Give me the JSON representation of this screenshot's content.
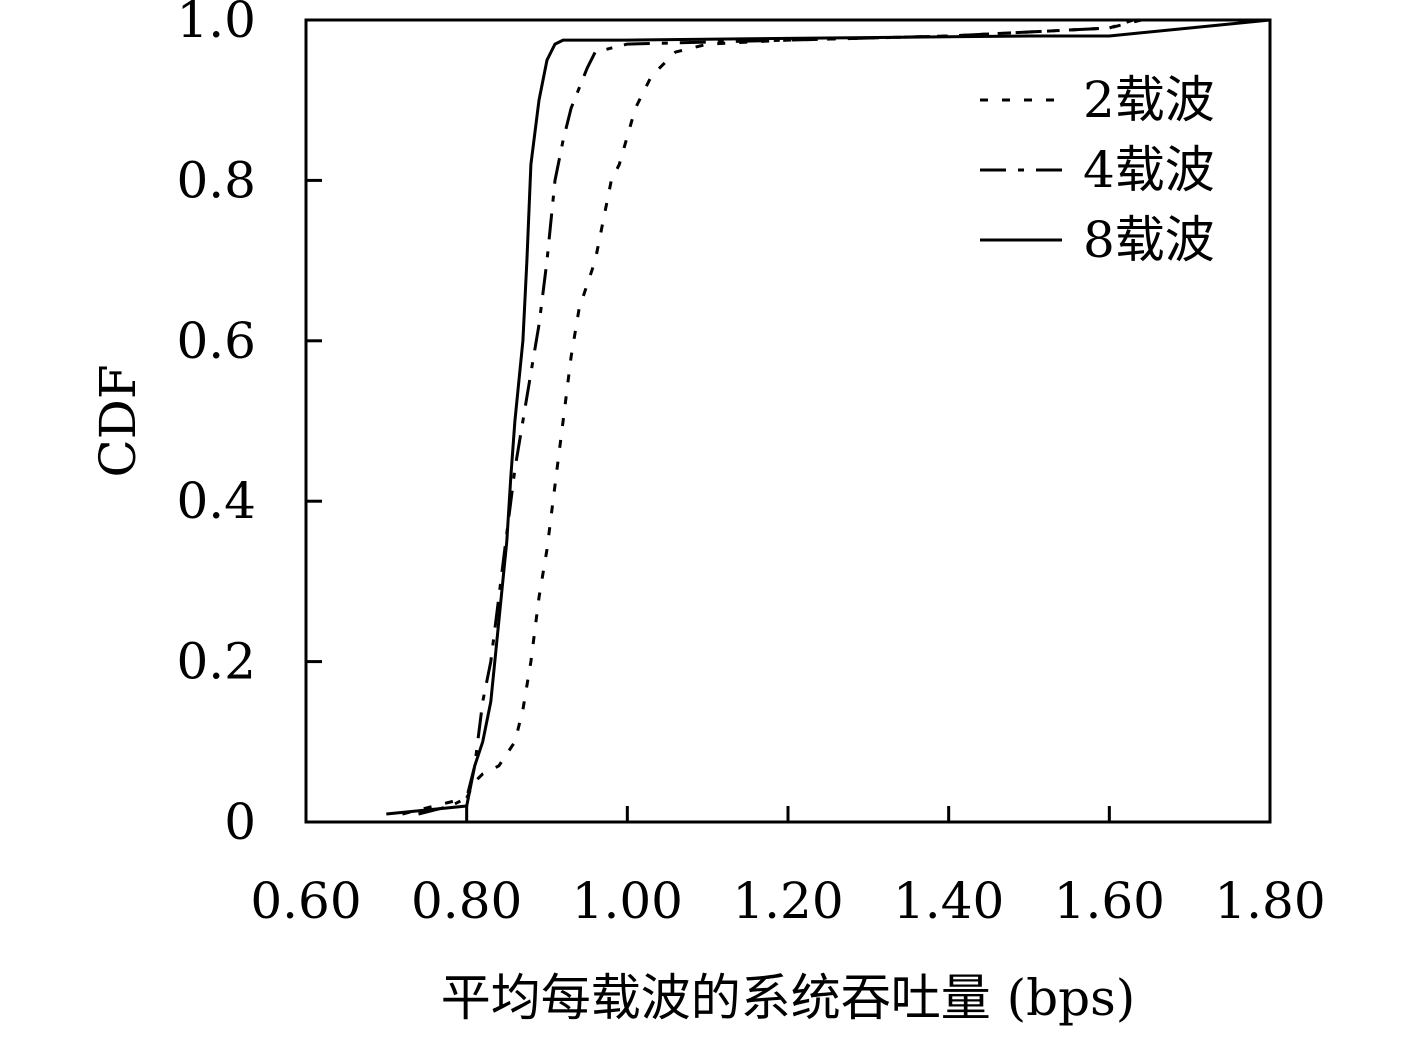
{
  "chart_data": {
    "type": "line",
    "title": "",
    "xlabel": "平均每载波的系统吞吐量 (bps)",
    "ylabel": "CDF",
    "xlim": [
      0.6,
      1.8
    ],
    "ylim": [
      0,
      1.0
    ],
    "xticks": [
      "0.60",
      "0.80",
      "1.00",
      "1.20",
      "1.40",
      "1.60",
      "1.80"
    ],
    "yticks": [
      "0",
      "0.2",
      "0.4",
      "0.6",
      "0.8",
      "1.0"
    ],
    "grid": false,
    "legend_position": "top-right",
    "series": [
      {
        "name": "2载波",
        "style": "dotted",
        "x": [
          0.72,
          0.76,
          0.8,
          0.81,
          0.82,
          0.84,
          0.86,
          0.87,
          0.88,
          0.89,
          0.9,
          0.91,
          0.92,
          0.93,
          0.94,
          0.96,
          0.98,
          0.99,
          1.01,
          1.03,
          1.06,
          1.1,
          1.2,
          1.4,
          1.6,
          1.64,
          1.8
        ],
        "y": [
          0.01,
          0.02,
          0.03,
          0.05,
          0.06,
          0.07,
          0.1,
          0.14,
          0.2,
          0.28,
          0.34,
          0.42,
          0.5,
          0.58,
          0.64,
          0.7,
          0.8,
          0.82,
          0.89,
          0.93,
          0.96,
          0.97,
          0.975,
          0.98,
          0.99,
          1.0,
          1.0
        ]
      },
      {
        "name": "4载波",
        "style": "dash-dot",
        "x": [
          0.74,
          0.78,
          0.8,
          0.81,
          0.82,
          0.83,
          0.84,
          0.85,
          0.86,
          0.87,
          0.88,
          0.89,
          0.9,
          0.91,
          0.92,
          0.93,
          0.95,
          0.96,
          1.0,
          1.2,
          1.4,
          1.6,
          1.63,
          1.8
        ],
        "y": [
          0.01,
          0.02,
          0.03,
          0.07,
          0.15,
          0.2,
          0.28,
          0.36,
          0.44,
          0.5,
          0.56,
          0.62,
          0.7,
          0.8,
          0.85,
          0.89,
          0.94,
          0.96,
          0.97,
          0.975,
          0.98,
          0.99,
          1.0,
          1.0
        ]
      },
      {
        "name": "8载波",
        "style": "solid",
        "x": [
          0.7,
          0.75,
          0.8,
          0.81,
          0.82,
          0.83,
          0.84,
          0.85,
          0.855,
          0.86,
          0.87,
          0.875,
          0.88,
          0.89,
          0.9,
          0.91,
          0.92,
          1.0,
          1.2,
          1.4,
          1.5,
          1.6,
          1.7,
          1.8
        ],
        "y": [
          0.01,
          0.015,
          0.02,
          0.07,
          0.1,
          0.15,
          0.25,
          0.35,
          0.43,
          0.5,
          0.6,
          0.7,
          0.82,
          0.9,
          0.95,
          0.97,
          0.975,
          0.975,
          0.977,
          0.979,
          0.98,
          0.98,
          0.99,
          1.0
        ]
      }
    ]
  }
}
